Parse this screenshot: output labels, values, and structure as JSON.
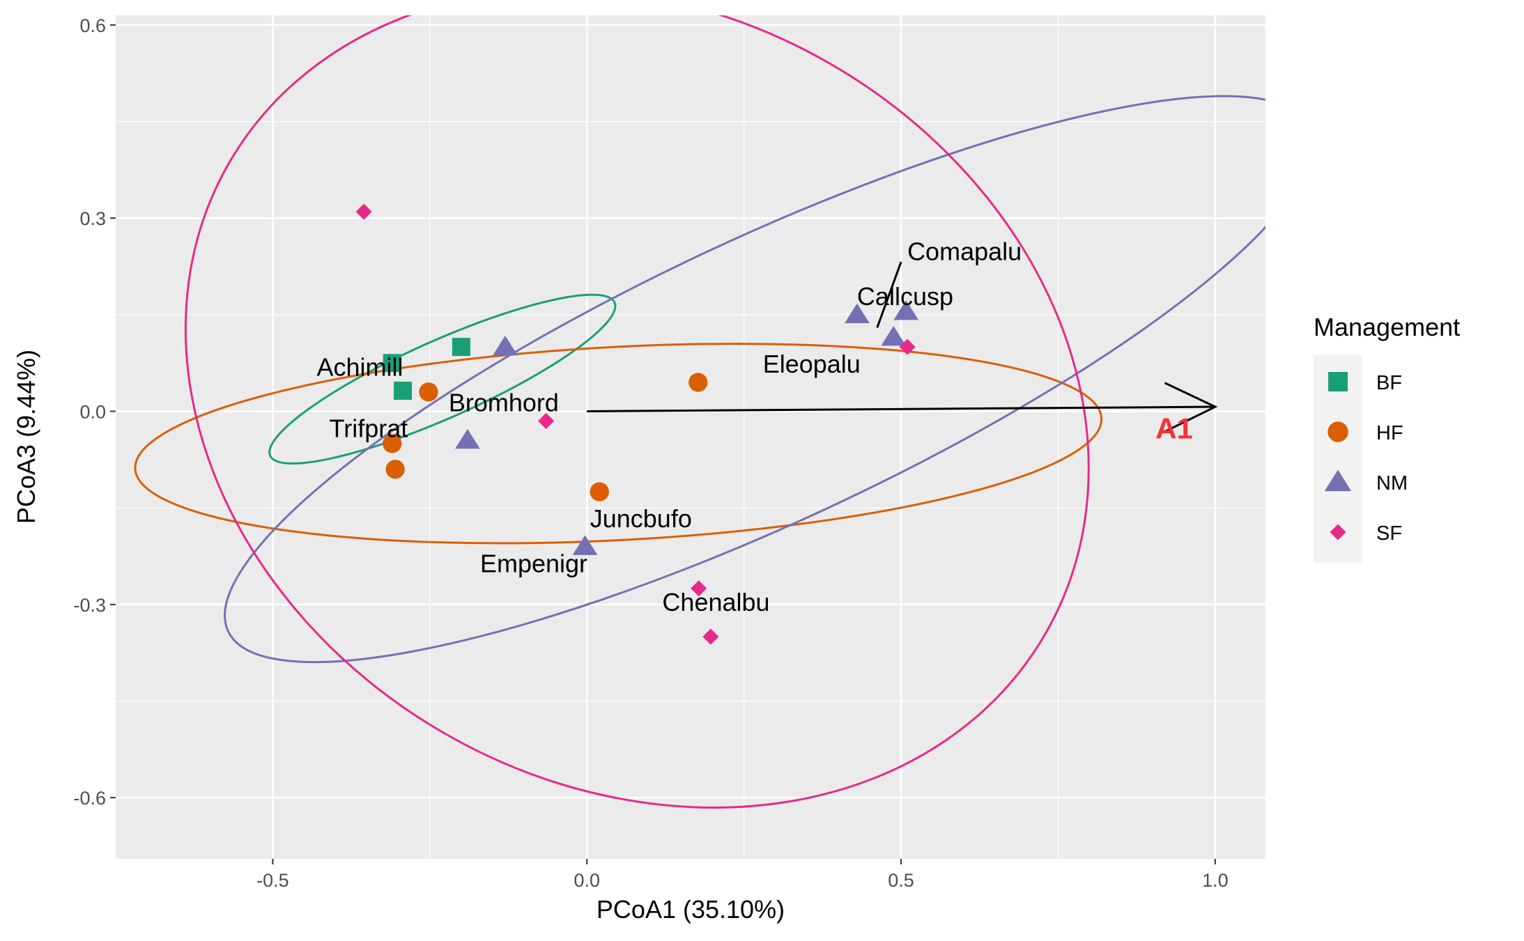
{
  "chart_data": {
    "type": "scatter",
    "xlabel": "PCoA1 (35.10%)",
    "ylabel": "PCoA3 (9.44%)",
    "xlim": [
      -0.75,
      1.08
    ],
    "ylim": [
      -0.695,
      0.615
    ],
    "x_ticks": [
      {
        "value": -0.5,
        "label": "-0.5"
      },
      {
        "value": 0.0,
        "label": "0.0"
      },
      {
        "value": 0.5,
        "label": "0.5"
      },
      {
        "value": 1.0,
        "label": "1.0"
      }
    ],
    "y_ticks": [
      {
        "value": -0.6,
        "label": "-0.6"
      },
      {
        "value": -0.3,
        "label": "-0.3"
      },
      {
        "value": 0.0,
        "label": "0.0"
      },
      {
        "value": 0.3,
        "label": "0.3"
      },
      {
        "value": 0.6,
        "label": "0.6"
      }
    ],
    "grid": true,
    "background": "#ebebeb",
    "legend": {
      "title": "Management",
      "position": "right"
    },
    "series": [
      {
        "name": "BF",
        "shape": "square",
        "color": "#1b9e77",
        "points": [
          [
            -0.31,
            0.075
          ],
          [
            -0.293,
            0.032
          ],
          [
            -0.2,
            0.1
          ]
        ],
        "ellipse": {
          "cx": -0.23,
          "cy": 0.05,
          "rx": 0.3,
          "ry": 0.06,
          "angle_deg": 24
        }
      },
      {
        "name": "HF",
        "shape": "circle",
        "color": "#d95f02",
        "points": [
          [
            -0.31,
            -0.05
          ],
          [
            -0.305,
            -0.09
          ],
          [
            -0.252,
            0.03
          ],
          [
            0.177,
            0.045
          ],
          [
            0.02,
            -0.125
          ]
        ],
        "ellipse": {
          "cx": 0.05,
          "cy": -0.05,
          "rx": 0.77,
          "ry": 0.15,
          "angle_deg": 3
        }
      },
      {
        "name": "NM",
        "shape": "triangle",
        "color": "#7570b3",
        "points": [
          [
            -0.13,
            0.1
          ],
          [
            -0.19,
            -0.045
          ],
          [
            -0.003,
            -0.21
          ],
          [
            0.43,
            0.15
          ],
          [
            0.508,
            0.155
          ],
          [
            0.488,
            0.115
          ]
        ],
        "ellipse": {
          "cx": 0.29,
          "cy": 0.05,
          "rx": 0.95,
          "ry": 0.22,
          "angle_deg": 25
        }
      },
      {
        "name": "SF",
        "shape": "diamond",
        "color": "#e7298a",
        "points": [
          [
            -0.355,
            0.31
          ],
          [
            -0.065,
            -0.015
          ],
          [
            0.178,
            -0.275
          ],
          [
            0.197,
            -0.35
          ],
          [
            0.51,
            0.1
          ]
        ],
        "ellipse": {
          "cx": 0.08,
          "cy": 0.02,
          "rx": 0.75,
          "ry": 0.6,
          "angle_deg": -30
        }
      }
    ],
    "text_labels": [
      {
        "text": "Comapalu",
        "x": 0.51,
        "y": 0.235
      },
      {
        "text": "Callcusp",
        "x": 0.43,
        "y": 0.165
      },
      {
        "text": "Eleopalu",
        "x": 0.28,
        "y": 0.06
      },
      {
        "text": "Achimill",
        "x": -0.43,
        "y": 0.055
      },
      {
        "text": "Bromhord",
        "x": -0.22,
        "y": 0.0
      },
      {
        "text": "Trifprat",
        "x": -0.41,
        "y": -0.04
      },
      {
        "text": "Juncbufo",
        "x": 0.005,
        "y": -0.18
      },
      {
        "text": "Empenigr",
        "x": -0.17,
        "y": -0.25
      },
      {
        "text": "Chenalbu",
        "x": 0.12,
        "y": -0.31
      }
    ],
    "leader_lines": [
      {
        "x1": 0.5,
        "y1": 0.232,
        "x2": 0.462,
        "y2": 0.13
      }
    ],
    "arrow": {
      "label": "A1",
      "label_color": "#f8303a",
      "color": "#000000",
      "from": [
        0.0,
        0.0
      ],
      "to": [
        1.0,
        0.007
      ],
      "label_x": 0.905,
      "label_y": -0.042
    }
  }
}
